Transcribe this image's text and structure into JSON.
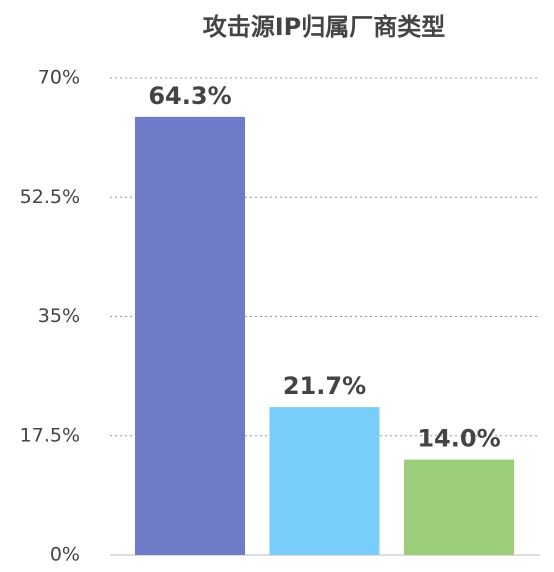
{
  "chart_data": {
    "type": "bar",
    "title": "攻击源IP归属厂商类型",
    "categories": [
      null,
      null,
      null
    ],
    "values": [
      64.3,
      21.7,
      14.0
    ],
    "value_labels": [
      "64.3%",
      "21.7%",
      "14.0%"
    ],
    "colors": [
      "#6f7bc8",
      "#79cdfb",
      "#9ccd78"
    ],
    "ylim": [
      0,
      70
    ],
    "yticks": [
      {
        "value": 0,
        "label": "0%"
      },
      {
        "value": 17.5,
        "label": "17.5%"
      },
      {
        "value": 35,
        "label": "35%"
      },
      {
        "value": 52.5,
        "label": "52.5%"
      },
      {
        "value": 70,
        "label": "70%"
      }
    ],
    "grid": true
  }
}
